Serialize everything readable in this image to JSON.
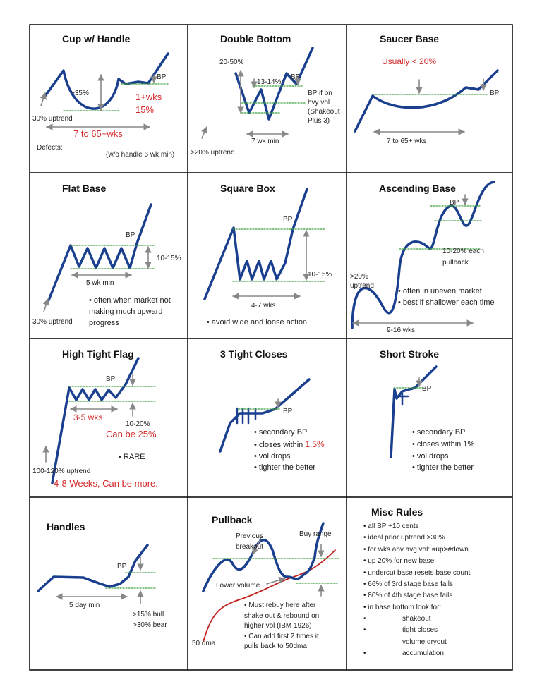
{
  "colors": {
    "line": "#1a3f8f",
    "green_dotted": "#3f9f3f",
    "arrow": "#888888",
    "accent_red": "#d42a2a",
    "ma_line": "#c0201e",
    "grid": "#000000"
  },
  "panels": [
    {
      "id": "cup",
      "title": "Cup w/ Handle",
      "labels": {
        "bp": "BP",
        "depth": ">35%",
        "wks": "1+wks",
        "pct": "15%",
        "uptrend": "30% uptrend",
        "duration": "7 to 65+wks",
        "defects": "Defects:",
        "handle_note": "(w/o handle 6 wk min)"
      }
    },
    {
      "id": "double_bottom",
      "title": "Double Bottom",
      "labels": {
        "depth": "20-50%",
        "mid": "13-14%",
        "bp": "BP",
        "note": "BP if on\nhvy vol\n(Shakeout\nPlus 3)",
        "duration": "7 wk min",
        "uptrend": ">20% uptrend"
      }
    },
    {
      "id": "saucer",
      "title": "Saucer Base",
      "labels": {
        "usually": "Usually < 20%",
        "bp": "BP",
        "duration": "7 to 65+ wks"
      }
    },
    {
      "id": "flat",
      "title": "Flat Base",
      "labels": {
        "bp": "BP",
        "depth": "10-15%",
        "duration": "5 wk min",
        "note": "• often when market not\n   making much upward\n   progress",
        "uptrend": "30% uptrend"
      }
    },
    {
      "id": "square",
      "title": "Square Box",
      "labels": {
        "bp": "BP",
        "depth": "10-15%",
        "duration": "4-7 wks",
        "note": "• avoid wide and loose action"
      }
    },
    {
      "id": "ascending",
      "title": "Ascending Base",
      "labels": {
        "bp": "BP",
        "pullback": "10-20% each\npullback",
        "uptrend": ">20%\nuptrend",
        "note": "• often in uneven market\n• best if shallower each time",
        "duration": "9-16 wks"
      }
    },
    {
      "id": "htf",
      "title": "High Tight Flag",
      "labels": {
        "bp": "BP",
        "wks": "3-5 wks",
        "depth": "10-20%",
        "can_be": "Can be 25%",
        "rare": "• RARE",
        "uptrend": "100-120% uptrend",
        "weeks": "4-8 Weeks, Can be more."
      }
    },
    {
      "id": "tight_closes",
      "title": "3 Tight Closes",
      "labels": {
        "bp": "BP",
        "b1": "• secondary BP",
        "b2": "• closes within ",
        "b2_red": "1.5%",
        "b3": "• vol drops",
        "b4": "• tighter the better"
      }
    },
    {
      "id": "short_stroke",
      "title": "Short Stroke",
      "labels": {
        "bp": "BP",
        "b1": "• secondary BP",
        "b2": "• closes within 1%",
        "b3": "• vol drops",
        "b4": "• tighter the better"
      }
    },
    {
      "id": "handles",
      "title": "Handles",
      "labels": {
        "bp": "BP",
        "duration": "5 day min",
        "pct": ">15% bull\n>30% bear"
      }
    },
    {
      "id": "pullback",
      "title": "Pullback",
      "labels": {
        "previous": "Previous\nbreakout",
        "buy_range": "Buy range",
        "lower_volume": "Lower volume",
        "note": "• Must rebuy here after\n  shake out & rebound on\n  higher vol (IBM 1926)\n• Can add first 2 times it\n  pulls back to 50dma",
        "dma": "50 dma"
      }
    },
    {
      "id": "misc",
      "title": "Misc Rules",
      "rules": [
        "• all BP +10 cents",
        "• ideal prior uptrend >30%",
        "• for wks abv avg vol: #up>#down",
        "• up 20% for new base",
        "• undercut base resets base count",
        "• 66% of 3rd stage base fails",
        "• 80% of 4th stage base fails",
        "• in base bottom look for:"
      ],
      "sub_rules": [
        "shakeout",
        "tight closes",
        "volume dryout",
        "accumulation"
      ]
    }
  ]
}
